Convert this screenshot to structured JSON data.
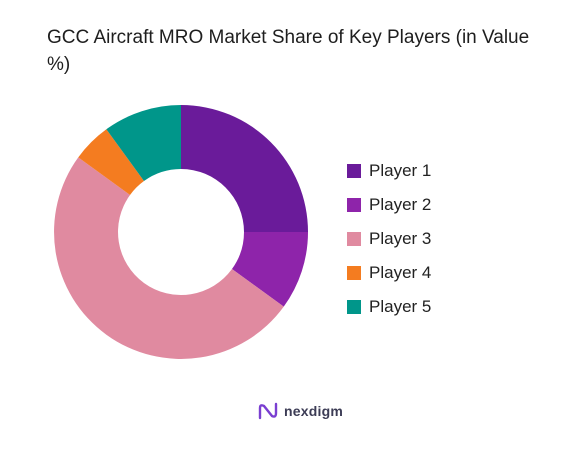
{
  "chart_data": {
    "type": "pie",
    "style": "donut",
    "title": "GCC Aircraft MRO Market Share of Key Players (in Value %)",
    "categories": [
      "Player 1",
      "Player 2",
      "Player 3",
      "Player 4",
      "Player 5"
    ],
    "values": [
      25,
      10,
      50,
      5,
      10
    ],
    "colors": [
      "#6a1b9a",
      "#8e24aa",
      "#e08aa0",
      "#f47c20",
      "#00968a"
    ],
    "legend_position": "right"
  },
  "brand": {
    "name": "nexdigm",
    "color": "#7a3fd1"
  }
}
